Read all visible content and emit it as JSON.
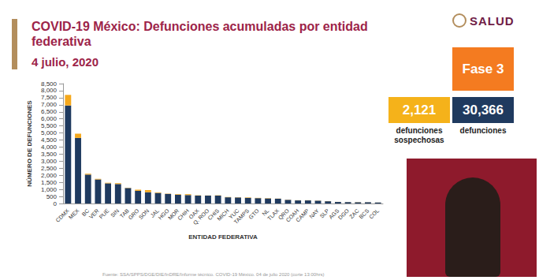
{
  "chart_data": {
    "type": "bar",
    "title": "COVID-19 México: Defunciones acumuladas por entidad federativa",
    "subtitle": "4 julio, 2020",
    "x_label": "ENTIDAD FEDERATIVA",
    "y_label": "NÚMERO DE DEFUNCIONES",
    "categories": [
      "CDMX",
      "MEX",
      "BC",
      "VER",
      "PUE",
      "SIN",
      "TAB",
      "GRO",
      "SON",
      "JAL",
      "HGO",
      "MOR",
      "CHIH",
      "OAX",
      "Q. ROO",
      "CHIS",
      "MICH",
      "YUC",
      "TAMPS",
      "GTO",
      "NL",
      "TLAX",
      "QRO",
      "COAH",
      "CAMP",
      "NAY",
      "SLP",
      "AGS",
      "DGO",
      "ZAC",
      "BCS",
      "COL"
    ],
    "series": [
      {
        "color": "#1F3A5F",
        "values": [
          6950,
          4650,
          2050,
          1700,
          1430,
          1380,
          1100,
          900,
          800,
          750,
          680,
          620,
          600,
          560,
          560,
          560,
          440,
          430,
          400,
          380,
          360,
          340,
          260,
          220,
          220,
          200,
          160,
          110,
          100,
          90,
          90,
          70
        ]
      },
      {
        "color": "#F5A81C",
        "values": [
          750,
          300,
          60,
          50,
          40,
          60,
          20,
          80,
          150,
          40,
          20,
          40,
          60,
          20,
          10,
          20,
          20,
          15,
          30,
          20,
          20,
          10,
          10,
          10,
          10,
          10,
          10,
          5,
          5,
          10,
          5,
          5
        ]
      }
    ],
    "stacked": true,
    "grid": false,
    "ylim": [
      0,
      8500
    ],
    "yticks": [
      0,
      500,
      1000,
      1500,
      2000,
      2500,
      3000,
      3500,
      4000,
      4500,
      5000,
      5500,
      6000,
      6500,
      7000,
      7500,
      8000,
      8500
    ]
  },
  "slide": {
    "logo": "SALUD",
    "phase": "Fase 3",
    "boxes": [
      {
        "value": "2,121",
        "label": "defunciones sospechosas"
      },
      {
        "value": "30,366",
        "label": "defunciones"
      }
    ],
    "source": "Fuente: SSA/SPPS/DGE/DIE/InDRE/Informe técnico. COVID-19 México. 04 de julio 2020 (corte 13:00hrs)"
  }
}
